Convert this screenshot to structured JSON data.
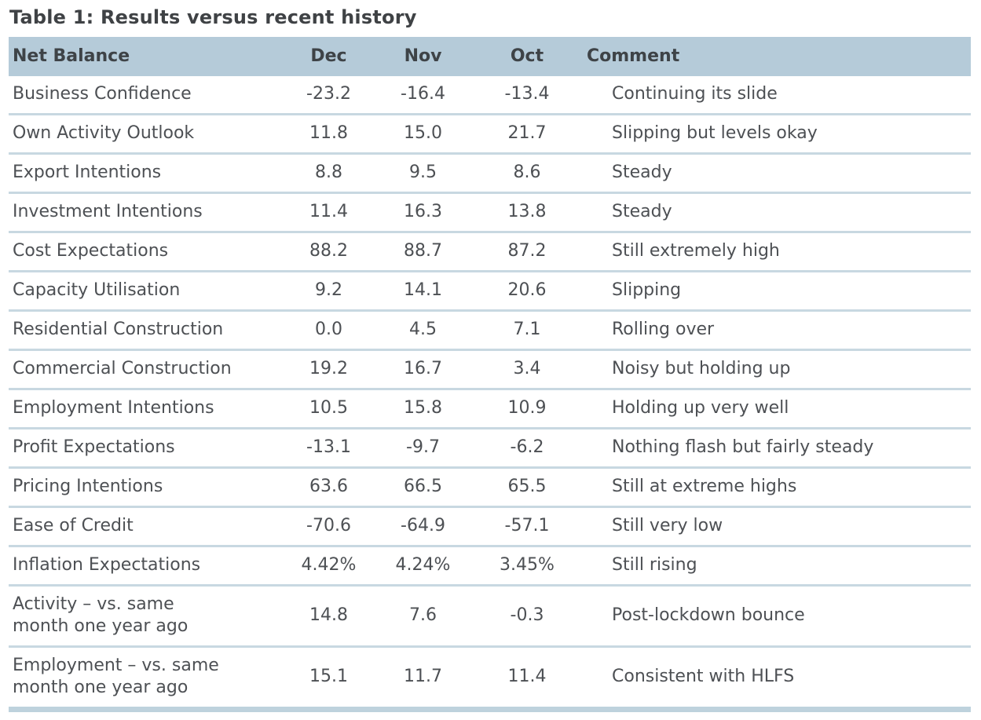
{
  "title": "Table 1: Results versus recent history",
  "colors": {
    "header_bg": "#b5cbd9",
    "separator": "#c8d8e1",
    "separator_strong": "#bed2dd",
    "title_text": "#3f4245",
    "header_text": "#3e4347",
    "body_text": "#4d5054"
  },
  "table": {
    "columns": [
      "Net Balance",
      "Dec",
      "Nov",
      "Oct",
      "Comment"
    ],
    "rows": [
      {
        "label": "Business Confidence",
        "dec": "-23.2",
        "nov": "-16.4",
        "oct": "-13.4",
        "comment": "Continuing its slide"
      },
      {
        "label": "Own Activity Outlook",
        "dec": "11.8",
        "nov": "15.0",
        "oct": "21.7",
        "comment": "Slipping but levels okay"
      },
      {
        "label": "Export Intentions",
        "dec": "8.8",
        "nov": "9.5",
        "oct": "8.6",
        "comment": "Steady"
      },
      {
        "label": "Investment Intentions",
        "dec": "11.4",
        "nov": "16.3",
        "oct": "13.8",
        "comment": "Steady"
      },
      {
        "label": "Cost Expectations",
        "dec": "88.2",
        "nov": "88.7",
        "oct": "87.2",
        "comment": "Still extremely high"
      },
      {
        "label": "Capacity Utilisation",
        "dec": "9.2",
        "nov": "14.1",
        "oct": "20.6",
        "comment": "Slipping"
      },
      {
        "label": "Residential Construction",
        "dec": "0.0",
        "nov": "4.5",
        "oct": "7.1",
        "comment": "Rolling over"
      },
      {
        "label": "Commercial Construction",
        "dec": "19.2",
        "nov": "16.7",
        "oct": "3.4",
        "comment": "Noisy but holding up"
      },
      {
        "label": "Employment Intentions",
        "dec": "10.5",
        "nov": "15.8",
        "oct": "10.9",
        "comment": "Holding up very well"
      },
      {
        "label": "Profit Expectations",
        "dec": "-13.1",
        "nov": "-9.7",
        "oct": "-6.2",
        "comment": "Nothing flash but fairly steady"
      },
      {
        "label": "Pricing Intentions",
        "dec": "63.6",
        "nov": "66.5",
        "oct": "65.5",
        "comment": "Still at extreme highs"
      },
      {
        "label": "Ease of Credit",
        "dec": "-70.6",
        "nov": "-64.9",
        "oct": "-57.1",
        "comment": "Still very low"
      },
      {
        "label": "Inflation Expectations",
        "dec": "4.42%",
        "nov": "4.24%",
        "oct": "3.45%",
        "comment": "Still rising"
      },
      {
        "label": "Activity – vs. same\nmonth one year ago",
        "dec": "14.8",
        "nov": "7.6",
        "oct": "-0.3",
        "comment": "Post-lockdown bounce"
      },
      {
        "label": "Employment – vs. same\nmonth one year ago",
        "dec": "15.1",
        "nov": "11.7",
        "oct": "11.4",
        "comment": "Consistent with HLFS"
      }
    ]
  }
}
